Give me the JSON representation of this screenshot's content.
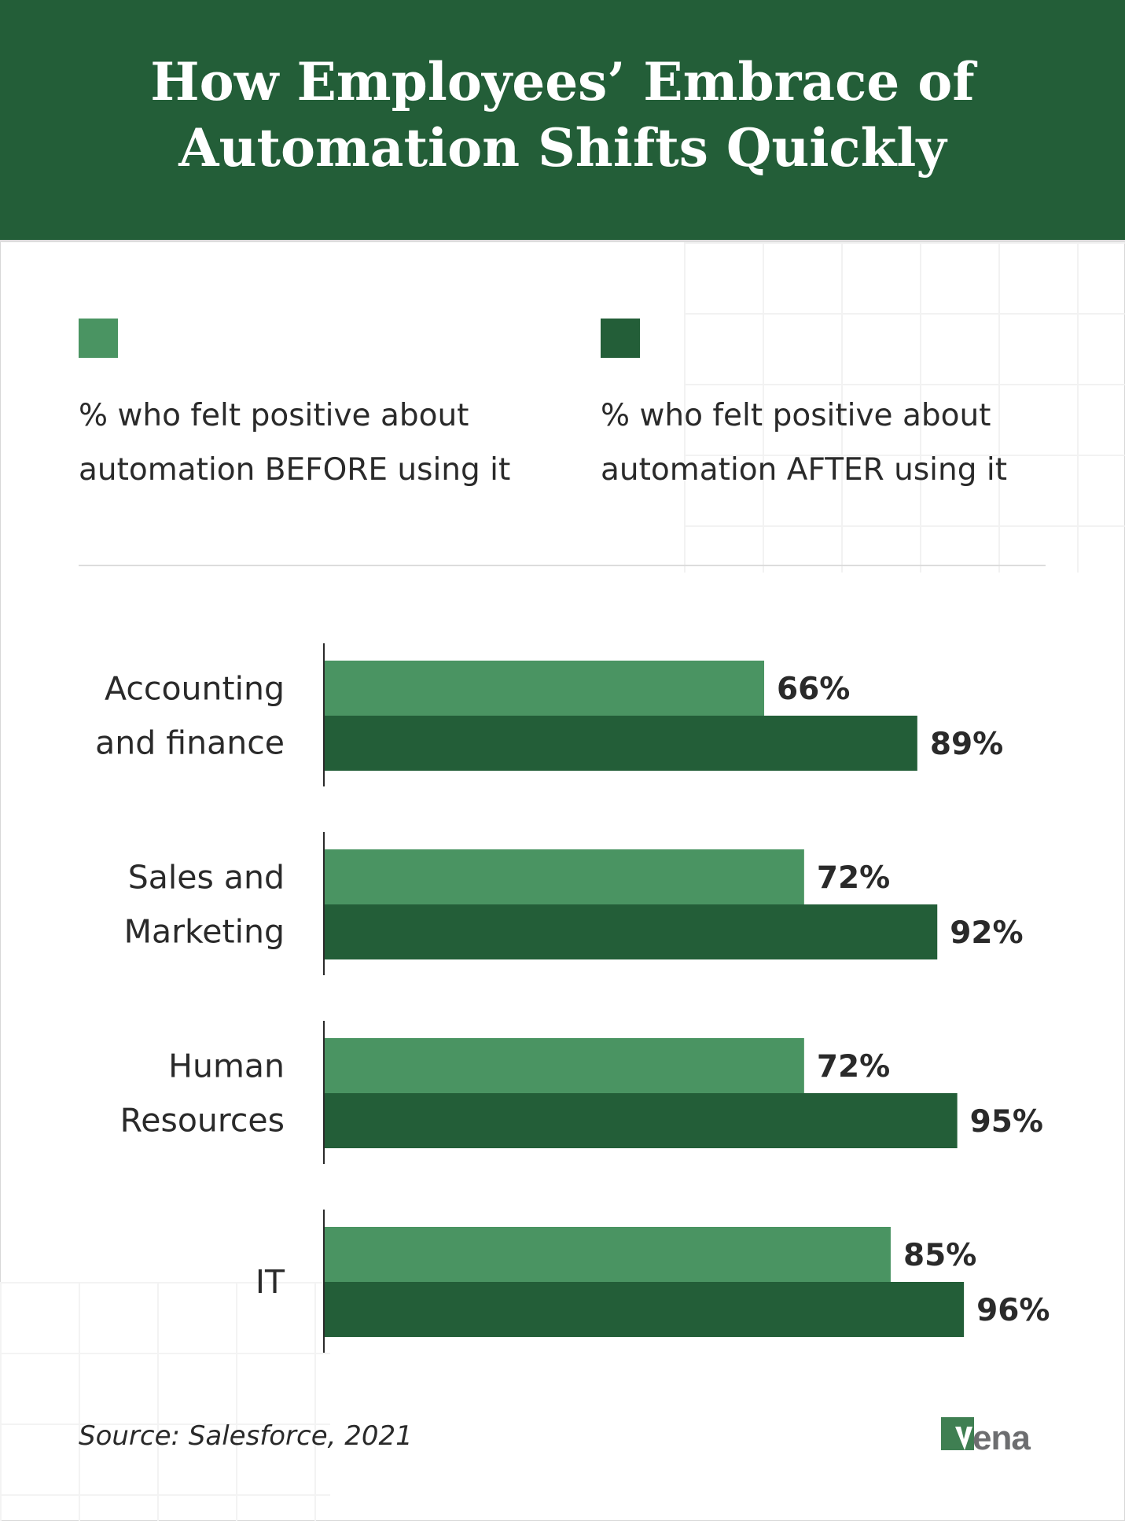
{
  "header": {
    "title_line1": "How Employees’ Embrace of",
    "title_line2": "Automation Shifts Quickly"
  },
  "legend": [
    {
      "label_line1": "% who felt positive about",
      "label_line2": "automation BEFORE using it",
      "color": "#4a9462"
    },
    {
      "label_line1": "% who felt positive about",
      "label_line2": "automation AFTER using it",
      "color": "#235e38"
    }
  ],
  "chart_data": {
    "type": "bar",
    "orientation": "horizontal",
    "title": "How Employees’ Embrace of Automation Shifts Quickly",
    "categories": [
      [
        "Accounting",
        "and finance"
      ],
      [
        "Sales and",
        "Marketing"
      ],
      [
        "Human",
        "Resources"
      ],
      [
        "IT"
      ]
    ],
    "series": [
      {
        "name": "% who felt positive about automation BEFORE using it",
        "values": [
          66,
          72,
          72,
          85
        ],
        "labels": [
          "66%",
          "72%",
          "72%",
          "85%"
        ],
        "color": "#4a9462"
      },
      {
        "name": "% who felt positive about automation AFTER using it",
        "values": [
          89,
          92,
          95,
          96
        ],
        "labels": [
          "89%",
          "92%",
          "95%",
          "96%"
        ],
        "color": "#235e38"
      }
    ],
    "xlim": [
      0,
      100
    ],
    "grid": false,
    "legend": "top"
  },
  "footer": {
    "source": "Source: Salesforce, 2021",
    "logo_text": "vena"
  }
}
